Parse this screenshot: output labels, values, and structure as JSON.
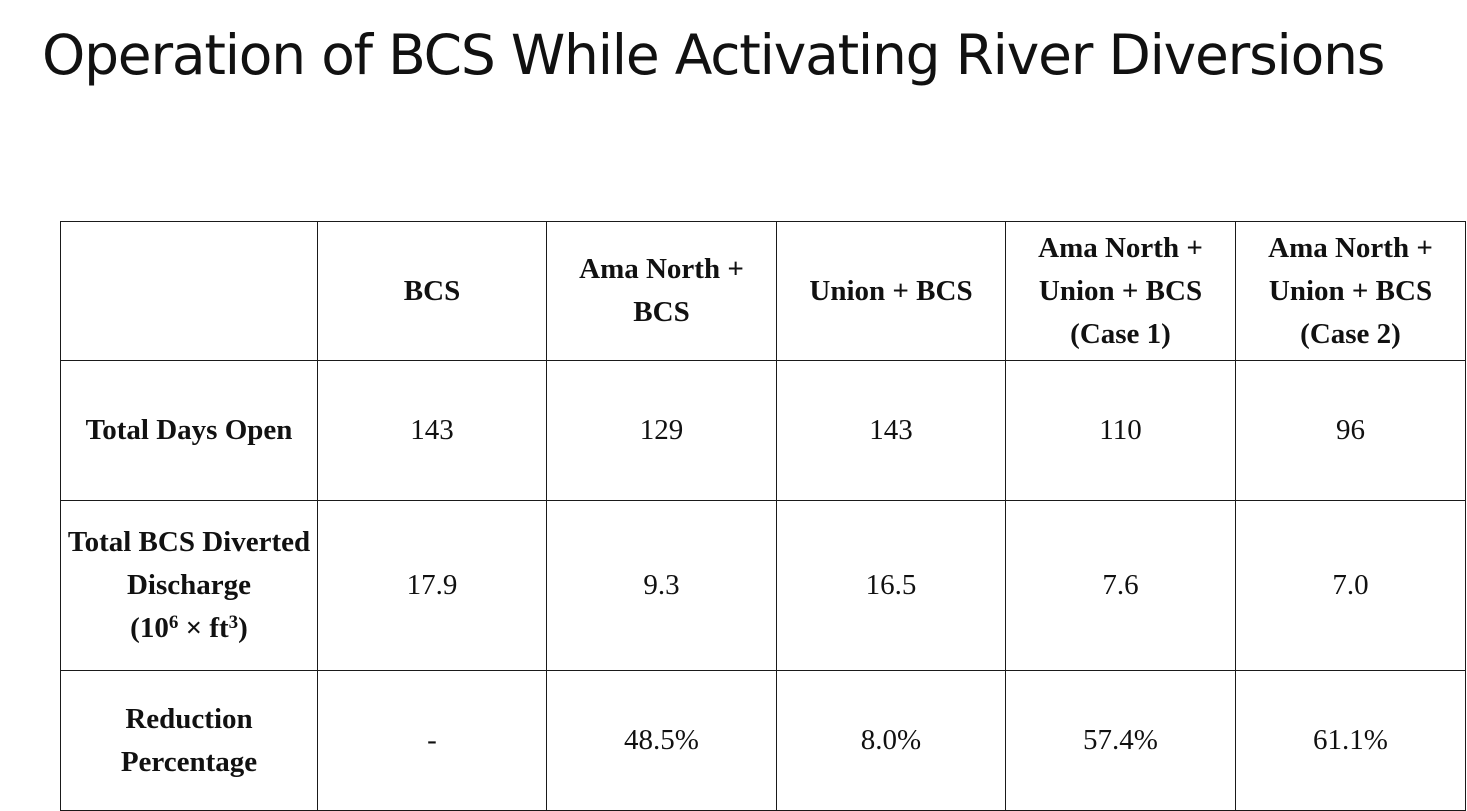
{
  "slide": {
    "title": "Operation of BCS While Activating River Diversions"
  },
  "table": {
    "headers": [
      "",
      "BCS",
      "Ama North + BCS",
      "Union + BCS",
      "Ama North + Union + BCS (Case 1)",
      "Ama North + Union + BCS (Case 2)"
    ],
    "rows": [
      {
        "label": "Total Days Open",
        "values": [
          "143",
          "129",
          "143",
          "110",
          "96"
        ]
      },
      {
        "label": "Total BCS Diverted Discharge",
        "unit": {
          "open": "(10",
          "exp1": "6",
          "mid": " × ft",
          "exp2": "3",
          "close": ")"
        },
        "values": [
          "17.9",
          "9.3",
          "16.5",
          "7.6",
          "7.0"
        ]
      },
      {
        "label": "Reduction Percentage",
        "values": [
          "-",
          "48.5%",
          "8.0%",
          "57.4%",
          "61.1%"
        ]
      }
    ]
  }
}
